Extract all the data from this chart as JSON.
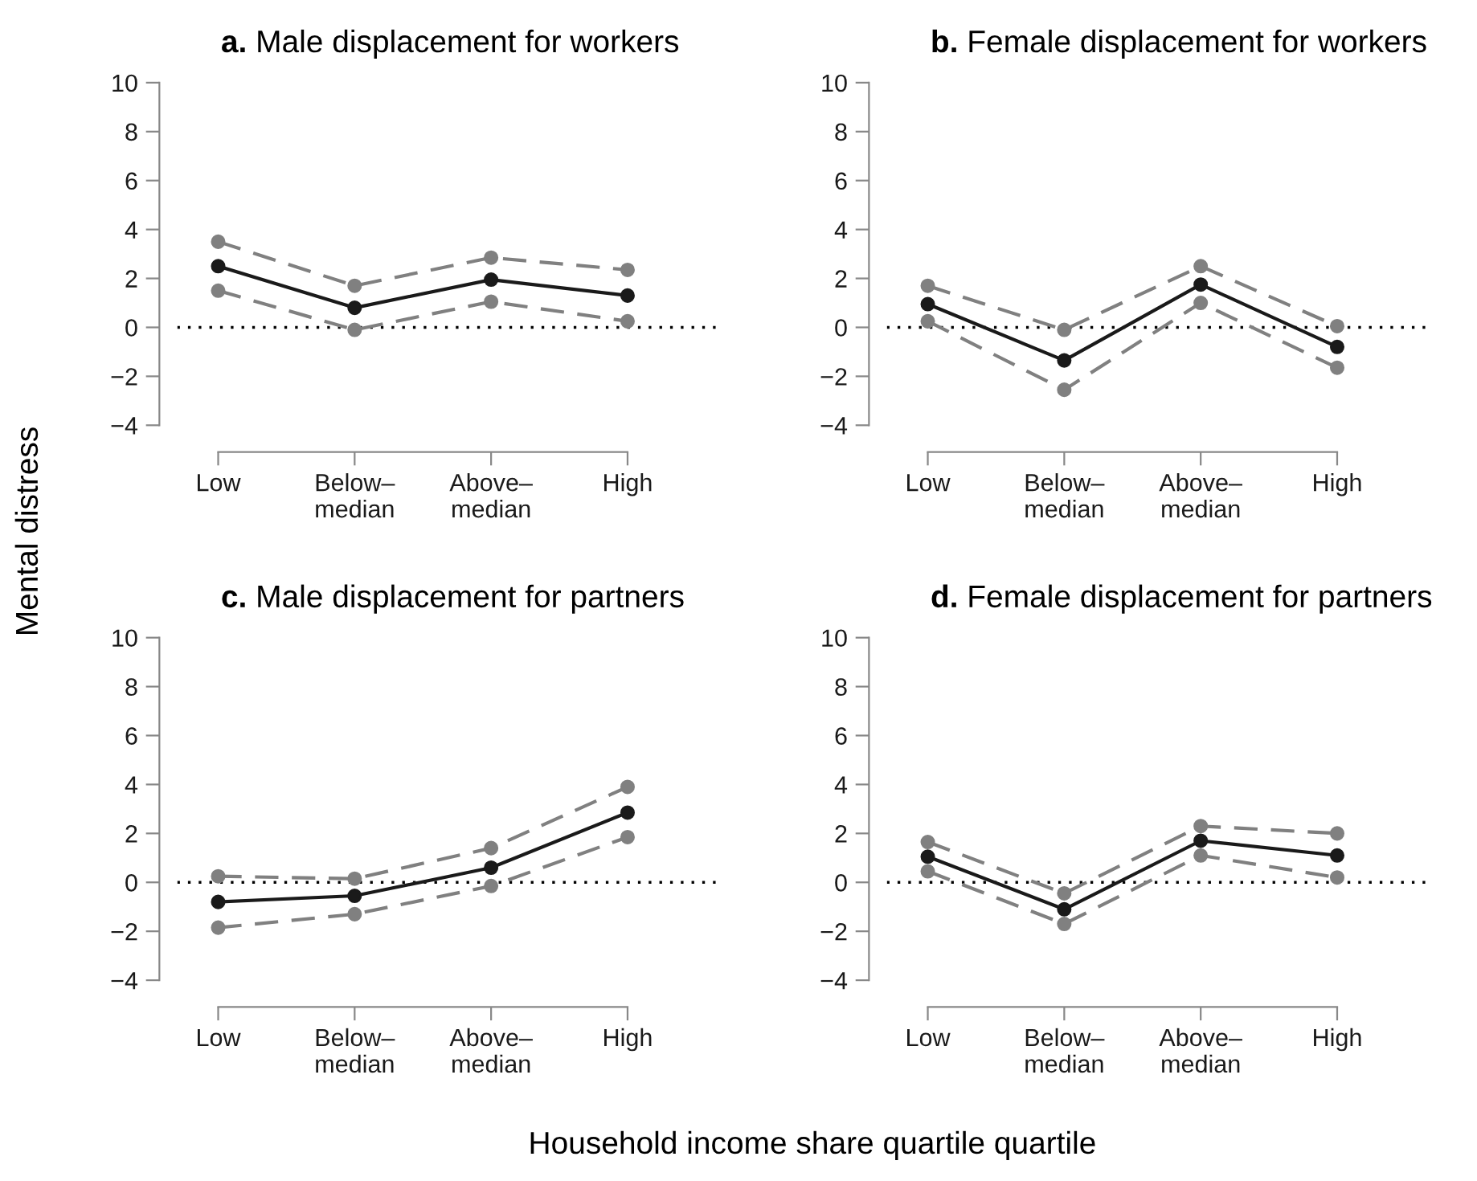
{
  "chart_data": [
    {
      "type": "line",
      "title": "a. Male displacement for workers",
      "ylabel": "Mental distress",
      "xlabel": "Household income share quartile quartile",
      "categories": [
        "Low",
        "Below–\nmedian",
        "Above–\nmedian",
        "High"
      ],
      "marker": "circle",
      "grid": false,
      "ylim": [
        -4,
        10
      ],
      "yticks": [
        -4,
        -2,
        0,
        2,
        4,
        6,
        8,
        10
      ],
      "ref_lines": [
        {
          "axis": "y",
          "value": 0,
          "line_style": "dotted",
          "color": "#000000"
        }
      ],
      "series": [
        {
          "color": "#808080",
          "line_style": "dashed",
          "values": [
            3.5,
            1.7,
            2.85,
            2.35
          ]
        },
        {
          "color": "#1a1a1a",
          "line_style": "solid",
          "values": [
            2.5,
            0.8,
            1.95,
            1.3
          ]
        },
        {
          "color": "#808080",
          "line_style": "dashed",
          "values": [
            1.5,
            -0.1,
            1.05,
            0.25
          ]
        }
      ]
    },
    {
      "type": "line",
      "title": "b. Female displacement for workers",
      "categories": [
        "Low",
        "Below–\nmedian",
        "Above–\nmedian",
        "High"
      ],
      "marker": "circle",
      "grid": false,
      "ylim": [
        -4,
        10
      ],
      "yticks": [
        -4,
        -2,
        0,
        2,
        4,
        6,
        8,
        10
      ],
      "ref_lines": [
        {
          "axis": "y",
          "value": 0,
          "line_style": "dotted",
          "color": "#000000"
        }
      ],
      "series": [
        {
          "color": "#808080",
          "line_style": "dashed",
          "values": [
            1.7,
            -0.1,
            2.5,
            0.05
          ]
        },
        {
          "color": "#1a1a1a",
          "line_style": "solid",
          "values": [
            0.95,
            -1.35,
            1.75,
            -0.8
          ]
        },
        {
          "color": "#808080",
          "line_style": "dashed",
          "values": [
            0.25,
            -2.55,
            1.0,
            -1.65
          ]
        }
      ]
    },
    {
      "type": "line",
      "title": "c. Male displacement for partners",
      "categories": [
        "Low",
        "Below–\nmedian",
        "Above–\nmedian",
        "High"
      ],
      "marker": "circle",
      "grid": false,
      "ylim": [
        -4,
        10
      ],
      "yticks": [
        -4,
        -2,
        0,
        2,
        4,
        6,
        8,
        10
      ],
      "ref_lines": [
        {
          "axis": "y",
          "value": 0,
          "line_style": "dotted",
          "color": "#000000"
        }
      ],
      "series": [
        {
          "color": "#808080",
          "line_style": "dashed",
          "values": [
            0.25,
            0.15,
            1.4,
            3.9
          ]
        },
        {
          "color": "#1a1a1a",
          "line_style": "solid",
          "values": [
            -0.8,
            -0.55,
            0.6,
            2.85
          ]
        },
        {
          "color": "#808080",
          "line_style": "dashed",
          "values": [
            -1.85,
            -1.3,
            -0.15,
            1.85
          ]
        }
      ]
    },
    {
      "type": "line",
      "title": "d. Female displacement for partners",
      "categories": [
        "Low",
        "Below–\nmedian",
        "Above–\nmedian",
        "High"
      ],
      "marker": "circle",
      "grid": false,
      "ylim": [
        -4,
        10
      ],
      "yticks": [
        -4,
        -2,
        0,
        2,
        4,
        6,
        8,
        10
      ],
      "ref_lines": [
        {
          "axis": "y",
          "value": 0,
          "line_style": "dotted",
          "color": "#000000"
        }
      ],
      "series": [
        {
          "color": "#808080",
          "line_style": "dashed",
          "values": [
            1.65,
            -0.45,
            2.3,
            2.0
          ]
        },
        {
          "color": "#1a1a1a",
          "line_style": "solid",
          "values": [
            1.05,
            -1.1,
            1.7,
            1.1
          ]
        },
        {
          "color": "#808080",
          "line_style": "dashed",
          "values": [
            0.45,
            -1.7,
            1.1,
            0.2
          ]
        }
      ]
    }
  ]
}
